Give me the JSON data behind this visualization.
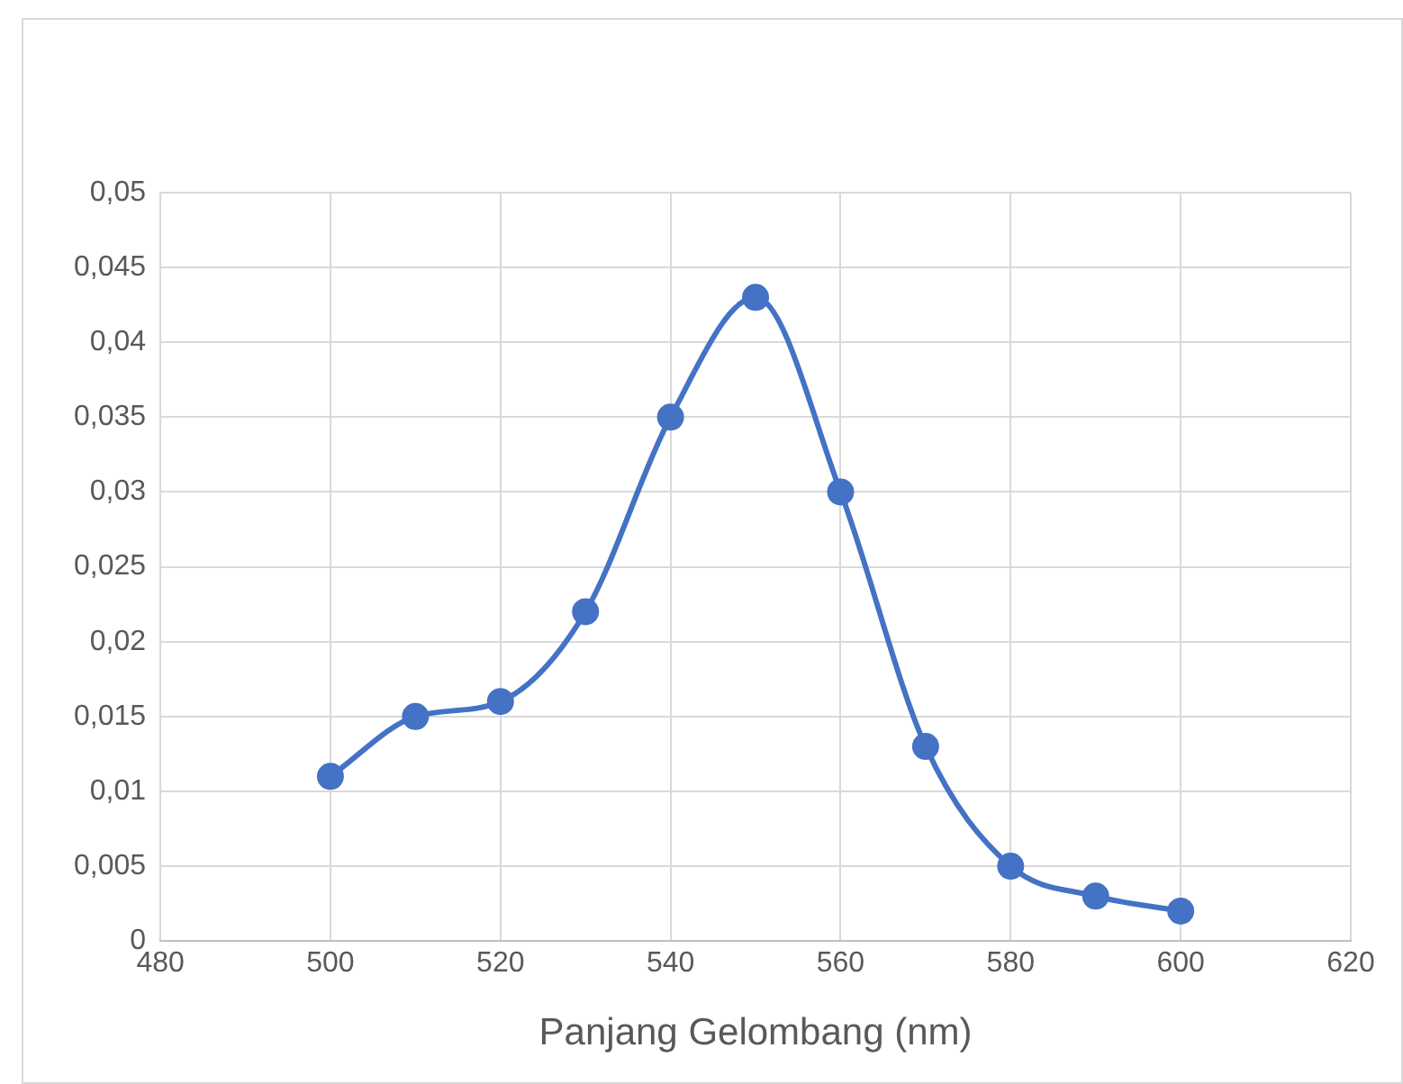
{
  "chart_data": {
    "type": "line",
    "xlabel": "Panjang Gelombang (nm)",
    "x": [
      500,
      510,
      520,
      530,
      540,
      550,
      560,
      570,
      580,
      590,
      600
    ],
    "series": [
      {
        "color": "#4472c4",
        "values": [
          0.011,
          0.015,
          0.016,
          0.022,
          0.035,
          0.043,
          0.03,
          0.013,
          0.005,
          0.003,
          0.002
        ]
      }
    ],
    "xlim": [
      480,
      620
    ],
    "xticks": [
      480,
      500,
      520,
      540,
      560,
      580,
      600,
      620
    ],
    "ylim": [
      0,
      0.05
    ],
    "yticks": [
      0,
      {
        "value": 0.005,
        "label": "0,005"
      },
      {
        "value": 0.01,
        "label": "0,01"
      },
      {
        "value": 0.015,
        "label": "0,015"
      },
      {
        "value": 0.02,
        "label": "0,02"
      },
      {
        "value": 0.025,
        "label": "0,025"
      },
      {
        "value": 0.03,
        "label": "0,03"
      },
      {
        "value": 0.035,
        "label": "0,035"
      },
      {
        "value": 0.04,
        "label": "0,04"
      },
      {
        "value": 0.045,
        "label": "0,045"
      },
      {
        "value": 0.05,
        "label": "0,05"
      }
    ],
    "grid": true,
    "legend": false,
    "marker": "circle",
    "line_style": "solid"
  }
}
